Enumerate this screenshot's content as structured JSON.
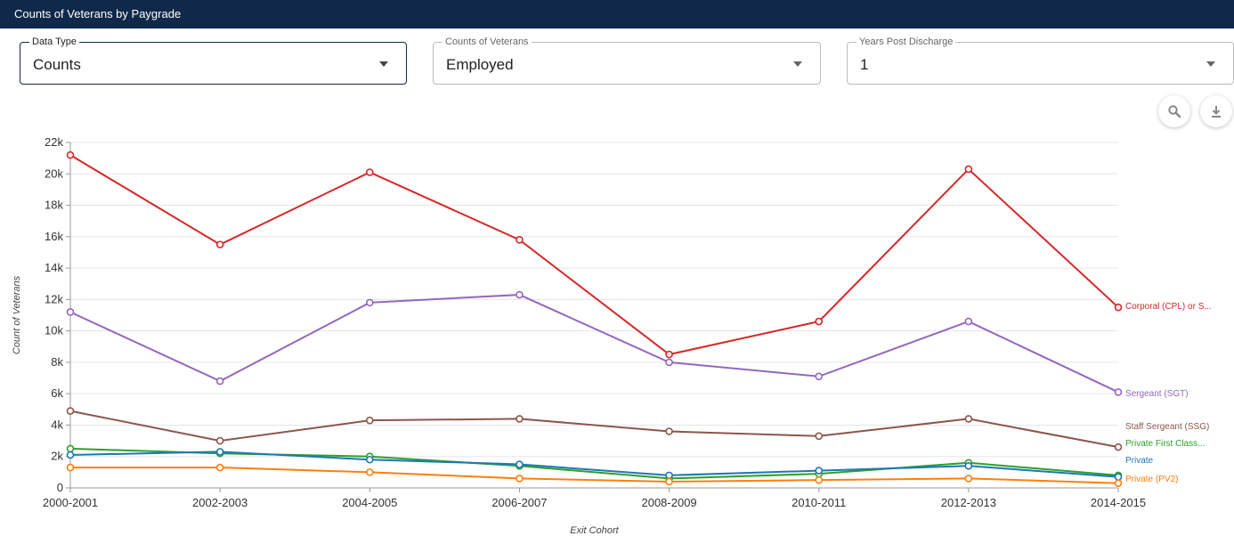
{
  "header": {
    "title": "Counts of Veterans by Paygrade"
  },
  "filters": [
    {
      "legend": "Data Type",
      "value": "Counts"
    },
    {
      "legend": "Counts of Veterans",
      "value": "Employed"
    },
    {
      "legend": "Years Post Discharge",
      "value": "1"
    }
  ],
  "toolbar": {
    "zoom_icon": "magnifier-icon",
    "download_icon": "download-icon"
  },
  "chart_data": {
    "type": "line",
    "xlabel": "Exit Cohort",
    "ylabel": "Count of Veterans",
    "x": [
      "2000-2001",
      "2002-2003",
      "2004-2005",
      "2006-2007",
      "2008-2009",
      "2010-2011",
      "2012-2013",
      "2014-2015"
    ],
    "ylim": [
      0,
      22000
    ],
    "yticks": [
      {
        "value": 0,
        "label": "0"
      },
      {
        "value": 2000,
        "label": "2k"
      },
      {
        "value": 4000,
        "label": "4k"
      },
      {
        "value": 6000,
        "label": "6k"
      },
      {
        "value": 8000,
        "label": "8k"
      },
      {
        "value": 10000,
        "label": "10k"
      },
      {
        "value": 12000,
        "label": "12k"
      },
      {
        "value": 14000,
        "label": "14k"
      },
      {
        "value": 16000,
        "label": "16k"
      },
      {
        "value": 18000,
        "label": "18k"
      },
      {
        "value": 20000,
        "label": "20k"
      },
      {
        "value": 22000,
        "label": "22k"
      }
    ],
    "grid": true,
    "legend": "inline-right",
    "series": [
      {
        "name": "Corporal (CPL) or S...",
        "color": "#d62728",
        "values": [
          21200,
          15500,
          20100,
          15800,
          8500,
          10600,
          20300,
          11500
        ]
      },
      {
        "name": "Sergeant (SGT)",
        "color": "#9467bd",
        "values": [
          11200,
          6800,
          11800,
          12300,
          8000,
          7100,
          10600,
          6100
        ]
      },
      {
        "name": "Staff Sergeant (SSG)",
        "color": "#8c564b",
        "values": [
          4900,
          3000,
          4300,
          4400,
          3600,
          3300,
          4400,
          2600
        ]
      },
      {
        "name": "Private First Class...",
        "color": "#2ca02c",
        "values": [
          2500,
          2200,
          2000,
          1400,
          600,
          900,
          1600,
          800
        ]
      },
      {
        "name": "Private",
        "color": "#1f77b4",
        "values": [
          2100,
          2300,
          1800,
          1500,
          800,
          1100,
          1400,
          700
        ]
      },
      {
        "name": "Private (PV2)",
        "color": "#ff7f0e",
        "values": [
          1300,
          1300,
          1000,
          600,
          400,
          500,
          600,
          300
        ]
      }
    ]
  }
}
